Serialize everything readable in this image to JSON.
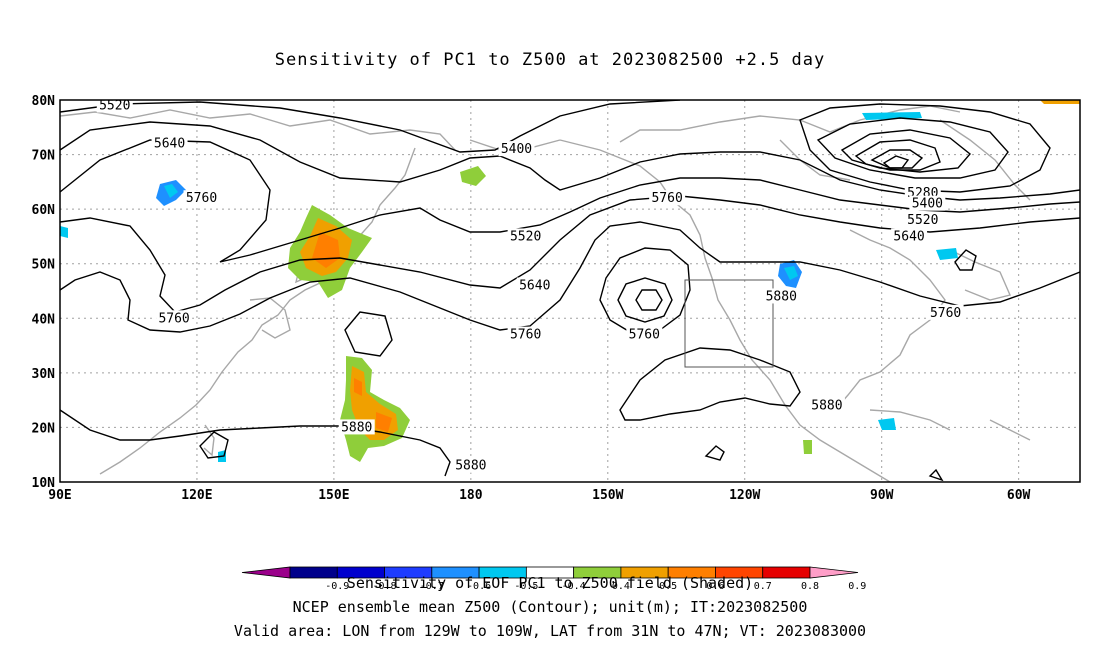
{
  "title": "Sensitivity of PC1 to Z500 at 2023082500 +2.5 day",
  "lat_labels": [
    "80N",
    "70N",
    "60N",
    "50N",
    "40N",
    "30N",
    "20N",
    "10N"
  ],
  "lon_labels": [
    "90E",
    "120E",
    "150E",
    "180",
    "150W",
    "120W",
    "90W",
    "60W"
  ],
  "contour_labels": [
    {
      "text": "5520",
      "lon": 102,
      "lat": 79
    },
    {
      "text": "5640",
      "lon": 114,
      "lat": 72
    },
    {
      "text": "5760",
      "lon": 121,
      "lat": 62
    },
    {
      "text": "5760",
      "lon": 115,
      "lat": 40
    },
    {
      "text": "5400",
      "lon": 190,
      "lat": 71
    },
    {
      "text": "5520",
      "lon": 192,
      "lat": 55
    },
    {
      "text": "5640",
      "lon": 194,
      "lat": 46
    },
    {
      "text": "5760",
      "lon": 192,
      "lat": 37
    },
    {
      "text": "5760",
      "lon": 223,
      "lat": 62
    },
    {
      "text": "5760",
      "lon": 218,
      "lat": 37
    },
    {
      "text": "5880",
      "lon": 248,
      "lat": 44
    },
    {
      "text": "5880",
      "lon": 258,
      "lat": 24
    },
    {
      "text": "5880",
      "lon": 155,
      "lat": 20
    },
    {
      "text": "5880",
      "lon": 180,
      "lat": 13
    },
    {
      "text": "5280",
      "lon": 279,
      "lat": 63
    },
    {
      "text": "5400",
      "lon": 280,
      "lat": 61
    },
    {
      "text": "5520",
      "lon": 279,
      "lat": 58
    },
    {
      "text": "5640",
      "lon": 276,
      "lat": 55
    },
    {
      "text": "5760",
      "lon": 284,
      "lat": 41
    }
  ],
  "colorbar": {
    "values": [
      "-0.9",
      "-0.8",
      "-0.7",
      "-0.6",
      "-0.5",
      "-0.4",
      "0.4",
      "0.5",
      "0.6",
      "0.7",
      "0.8",
      "0.9"
    ],
    "colors": [
      "#9b008b",
      "#00008b",
      "#0000cd",
      "#1e3cff",
      "#1e90ff",
      "#00c8f0",
      "#ffffff",
      "#8fce3a",
      "#f0a000",
      "#ff7f00",
      "#ff4500",
      "#e60000",
      "#ff9ec8"
    ],
    "title": "Sensitivity of EOF PC1 to Z500 field (Shaded)"
  },
  "valid_box": {
    "lon_from": "129W",
    "lon_to": "109W",
    "lat_from": "31N",
    "lat_to": "47N"
  },
  "captions": [
    "NCEP ensemble mean Z500 (Contour); unit(m); IT:2023082500",
    "Valid area: LON from 129W to 109W, LAT from 31N to 47N; VT: 2023083000"
  ],
  "colors": {
    "contour": "#000000",
    "coast": "#a8a8a8",
    "grid": "#a0a0a0"
  }
}
